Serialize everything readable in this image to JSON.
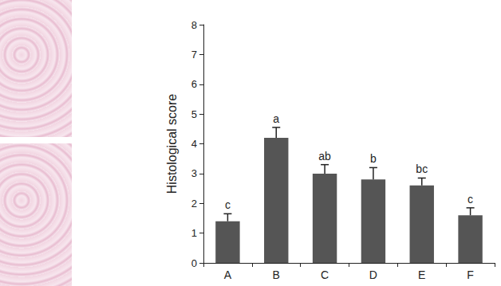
{
  "chart_data": {
    "type": "bar",
    "y_label": "Histological score",
    "categories": [
      "A",
      "B",
      "C",
      "D",
      "E",
      "F"
    ],
    "values": [
      1.4,
      4.2,
      3.0,
      2.8,
      2.6,
      1.6
    ],
    "errors": [
      0.25,
      0.35,
      0.3,
      0.4,
      0.25,
      0.25
    ],
    "annotations": [
      "c",
      "a",
      "ab",
      "b",
      "bc",
      "c"
    ],
    "color": "#555555",
    "ylim": [
      0,
      8
    ],
    "yticks": [
      0,
      1,
      2,
      3,
      4,
      5,
      6,
      7,
      8
    ],
    "grid": false
  }
}
